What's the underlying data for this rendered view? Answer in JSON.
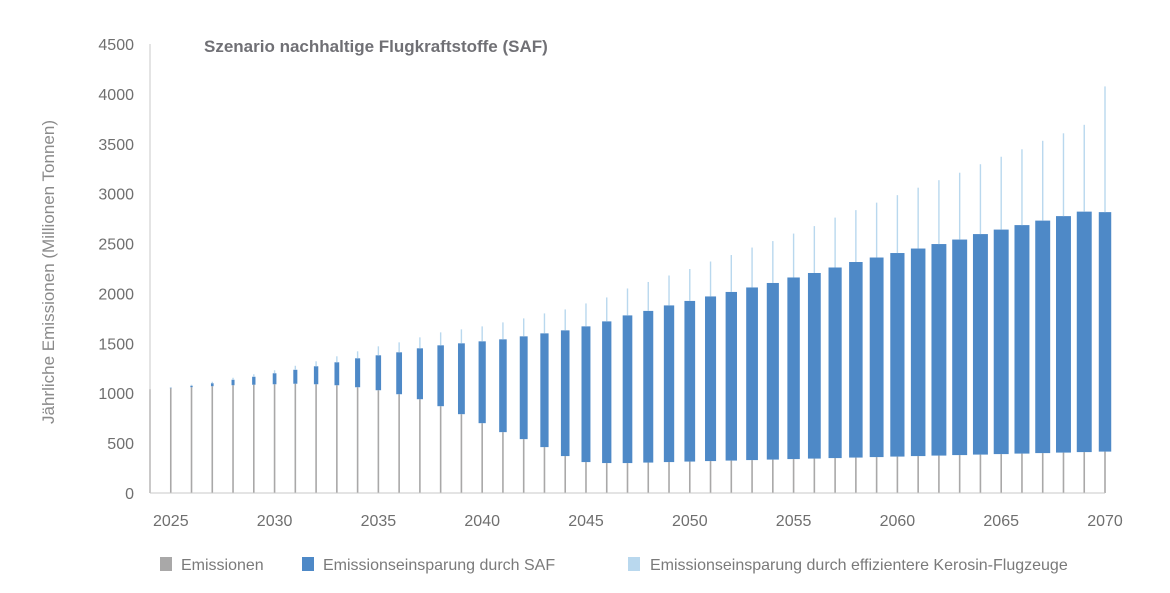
{
  "chart_data": {
    "type": "bar",
    "stacked": true,
    "title": "Szenario nachhaltige Flugkraftstoffe (SAF)",
    "ylabel": "Jährliche Emissionen (Millionen Tonnen)",
    "xlabel": "",
    "ylim": [
      0,
      4500
    ],
    "xlim": [
      2024,
      2070
    ],
    "yticks": [
      0,
      500,
      1000,
      1500,
      2000,
      2500,
      3000,
      3500,
      4000,
      4500
    ],
    "xticks": [
      2025,
      2030,
      2035,
      2040,
      2045,
      2050,
      2055,
      2060,
      2065,
      2070
    ],
    "grid": false,
    "legend_position": "bottom",
    "colors": {
      "emissions": "#a9a8a8",
      "saf": "#4e89c7",
      "efficiency": "#b9d8ee",
      "axis": "#c8c8c8"
    },
    "series": [
      {
        "name": "Emissionen",
        "color": "#a9a8a8",
        "values": [
          1040,
          1050,
          1060,
          1070,
          1080,
          1085,
          1090,
          1095,
          1090,
          1080,
          1060,
          1030,
          990,
          940,
          870,
          790,
          700,
          610,
          540,
          460,
          370,
          310,
          300,
          300,
          305,
          310,
          315,
          320,
          325,
          330,
          335,
          340,
          345,
          350,
          355,
          360,
          365,
          370,
          375,
          380,
          385,
          390,
          395,
          400,
          405,
          410,
          415
        ]
      },
      {
        "name": "Emissionseinsparung durch SAF",
        "color": "#4e89c7",
        "values": [
          0,
          5,
          15,
          30,
          55,
          80,
          110,
          140,
          180,
          230,
          290,
          350,
          420,
          510,
          610,
          710,
          820,
          930,
          1030,
          1140,
          1260,
          1360,
          1420,
          1480,
          1520,
          1570,
          1610,
          1650,
          1690,
          1730,
          1770,
          1820,
          1860,
          1910,
          1960,
          2000,
          2040,
          2080,
          2120,
          2160,
          2210,
          2250,
          2290,
          2330,
          2370,
          2410,
          2400
        ]
      },
      {
        "name": "Emissionseinsparung durch effizientere Kerosin-Flugzeuge",
        "color": "#b9d8ee",
        "values": [
          0,
          5,
          10,
          15,
          20,
          25,
          30,
          40,
          50,
          60,
          70,
          90,
          100,
          110,
          130,
          140,
          150,
          170,
          180,
          200,
          210,
          230,
          240,
          270,
          290,
          300,
          320,
          350,
          370,
          400,
          420,
          440,
          470,
          500,
          520,
          550,
          580,
          610,
          640,
          670,
          700,
          730,
          760,
          800,
          830,
          870,
          1260
        ]
      }
    ],
    "years": [
      2024,
      2025,
      2026,
      2027,
      2028,
      2029,
      2030,
      2031,
      2032,
      2033,
      2034,
      2035,
      2036,
      2037,
      2038,
      2039,
      2040,
      2041,
      2042,
      2043,
      2044,
      2045,
      2046,
      2047,
      2048,
      2049,
      2050,
      2051,
      2052,
      2053,
      2054,
      2055,
      2056,
      2057,
      2058,
      2059,
      2060,
      2061,
      2062,
      2063,
      2064,
      2065,
      2066,
      2067,
      2068,
      2069,
      2070
    ]
  }
}
